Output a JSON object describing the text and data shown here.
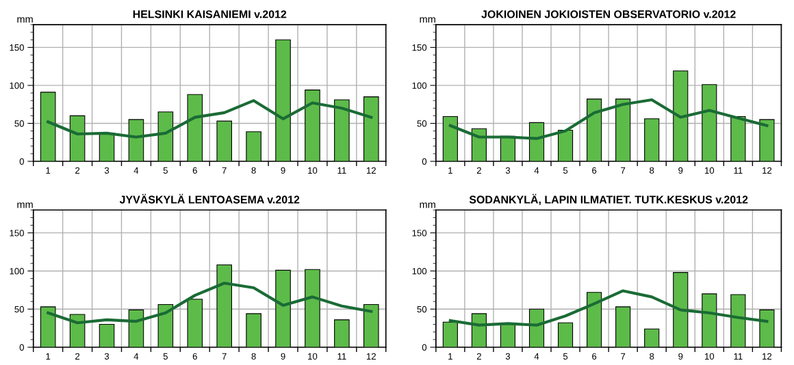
{
  "chart_data": [
    {
      "type": "bar",
      "title": "HELSINKI KAISANIEMI v.2012",
      "ylabel": "mm",
      "categories": [
        "1",
        "2",
        "3",
        "4",
        "5",
        "6",
        "7",
        "8",
        "9",
        "10",
        "11",
        "12"
      ],
      "ylim": [
        0,
        180
      ],
      "yticks": [
        0,
        50,
        100,
        150
      ],
      "grid": true,
      "series": [
        {
          "color": "#5dbb4a",
          "values": [
            91,
            60,
            37,
            55,
            65,
            88,
            53,
            39,
            160,
            94,
            81,
            85
          ]
        },
        {
          "type": "line",
          "color": "#1a6b35",
          "values": [
            52,
            36,
            37,
            32,
            37,
            58,
            64,
            80,
            56,
            77,
            70,
            58
          ]
        }
      ]
    },
    {
      "type": "bar",
      "title": "JOKIOINEN JOKIOISTEN OBSERVATORIO v.2012",
      "ylabel": "mm",
      "categories": [
        "1",
        "2",
        "3",
        "4",
        "5",
        "6",
        "7",
        "8",
        "9",
        "10",
        "11",
        "12"
      ],
      "ylim": [
        0,
        180
      ],
      "yticks": [
        0,
        50,
        100,
        150
      ],
      "grid": true,
      "series": [
        {
          "color": "#5dbb4a",
          "values": [
            59,
            43,
            33,
            51,
            41,
            82,
            82,
            56,
            119,
            101,
            59,
            55
          ]
        },
        {
          "type": "line",
          "color": "#1a6b35",
          "values": [
            47,
            32,
            32,
            30,
            40,
            64,
            75,
            81,
            58,
            67,
            57,
            47
          ]
        }
      ]
    },
    {
      "type": "bar",
      "title": "JYVÄSKYLÄ LENTOASEMA v.2012",
      "ylabel": "mm",
      "categories": [
        "1",
        "2",
        "3",
        "4",
        "5",
        "6",
        "7",
        "8",
        "9",
        "10",
        "11",
        "12"
      ],
      "ylim": [
        0,
        180
      ],
      "yticks": [
        0,
        50,
        100,
        150
      ],
      "grid": true,
      "series": [
        {
          "color": "#5dbb4a",
          "values": [
            53,
            43,
            30,
            49,
            56,
            63,
            108,
            44,
            101,
            102,
            36,
            56
          ]
        },
        {
          "type": "line",
          "color": "#1a6b35",
          "values": [
            45,
            32,
            36,
            34,
            45,
            68,
            84,
            78,
            55,
            66,
            54,
            47
          ]
        }
      ]
    },
    {
      "type": "bar",
      "title": "SODANKYLÄ, LAPIN ILMATIET. TUTK.KESKUS v.2012",
      "ylabel": "mm",
      "categories": [
        "1",
        "2",
        "3",
        "4",
        "5",
        "6",
        "7",
        "8",
        "9",
        "10",
        "11",
        "12"
      ],
      "ylim": [
        0,
        180
      ],
      "yticks": [
        0,
        50,
        100,
        150
      ],
      "grid": true,
      "series": [
        {
          "color": "#5dbb4a",
          "values": [
            33,
            44,
            31,
            50,
            32,
            72,
            53,
            24,
            98,
            70,
            69,
            49
          ]
        },
        {
          "type": "line",
          "color": "#1a6b35",
          "values": [
            35,
            29,
            31,
            29,
            41,
            57,
            74,
            66,
            49,
            45,
            39,
            34
          ]
        }
      ]
    }
  ]
}
